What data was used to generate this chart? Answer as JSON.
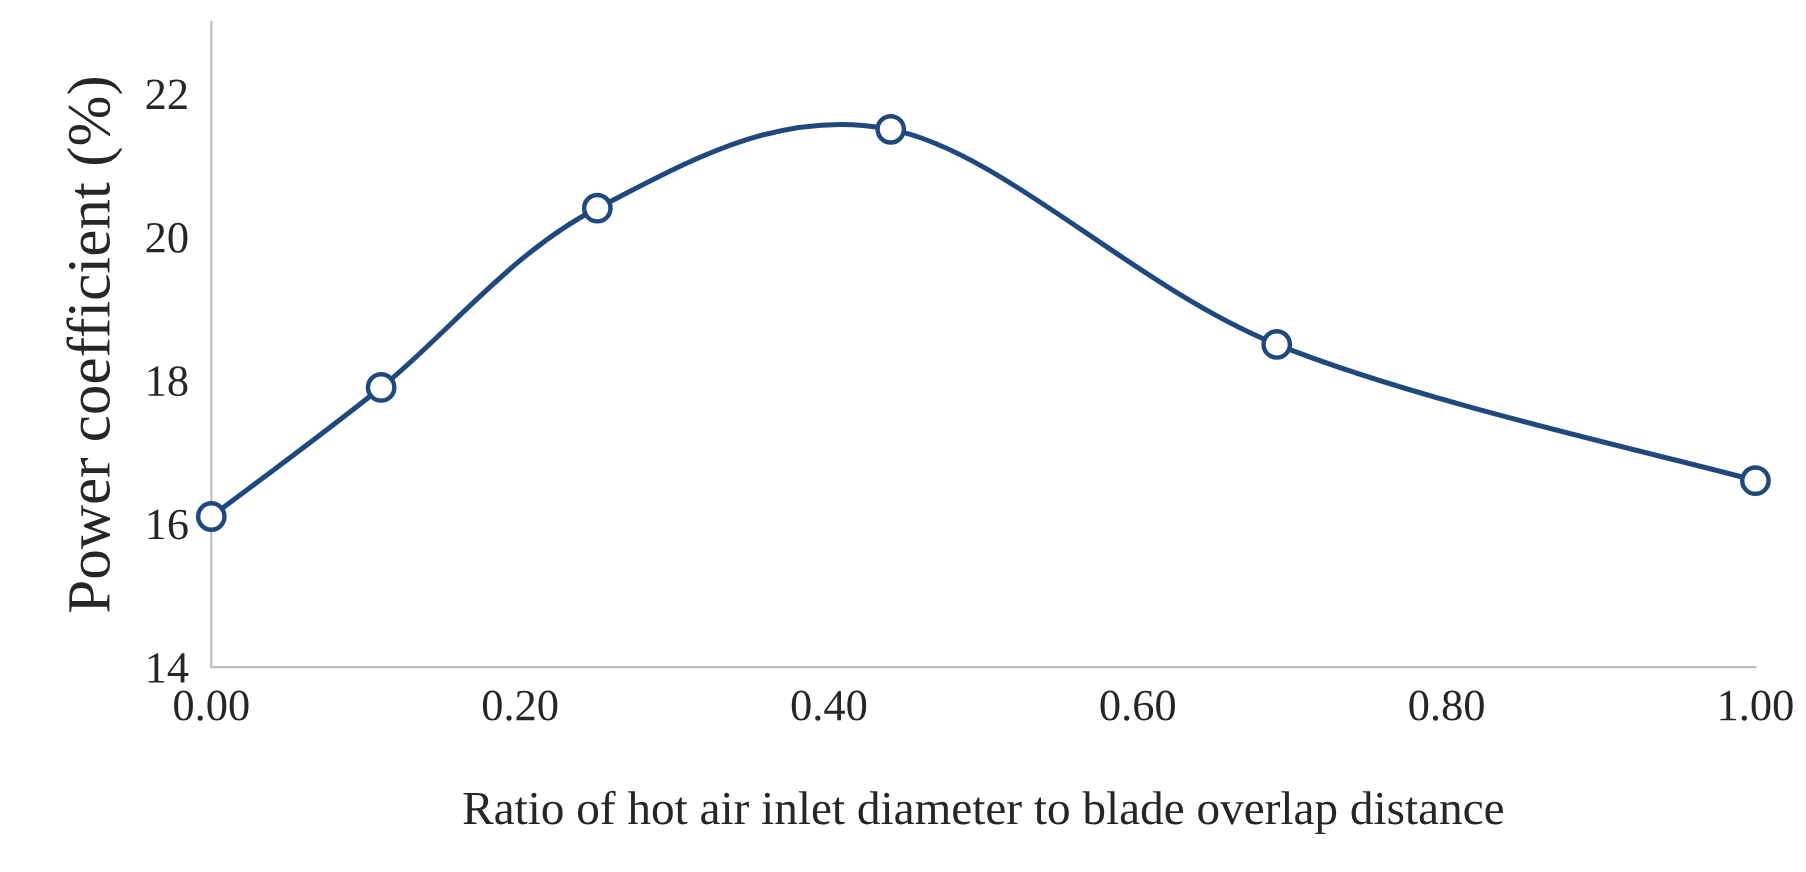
{
  "chart_data": {
    "type": "line",
    "xlabel": "Ratio of hot air inlet diameter to blade overlap distance",
    "ylabel": "Power coefficient (%)",
    "x": [
      0.0,
      0.11,
      0.25,
      0.44,
      0.69,
      1.0
    ],
    "series": [
      {
        "color": "#1f497d",
        "values": [
          16.1,
          17.9,
          20.4,
          21.5,
          18.5,
          16.6
        ]
      }
    ],
    "xlim": [
      0,
      1
    ],
    "xticks": [
      {
        "value": 0,
        "label": "0.00"
      },
      {
        "value": 0.2,
        "label": "0.20"
      },
      {
        "value": 0.4,
        "label": "0.40"
      },
      {
        "value": 0.6,
        "label": "0.60"
      },
      {
        "value": 0.8,
        "label": "0.80"
      },
      {
        "value": 1.0,
        "label": "1.00"
      }
    ],
    "ylim": [
      14,
      23
    ],
    "yticks": [
      14,
      16,
      18,
      20,
      22
    ],
    "marker": "circle",
    "line_style": "solid",
    "grid": false,
    "legend": false
  }
}
